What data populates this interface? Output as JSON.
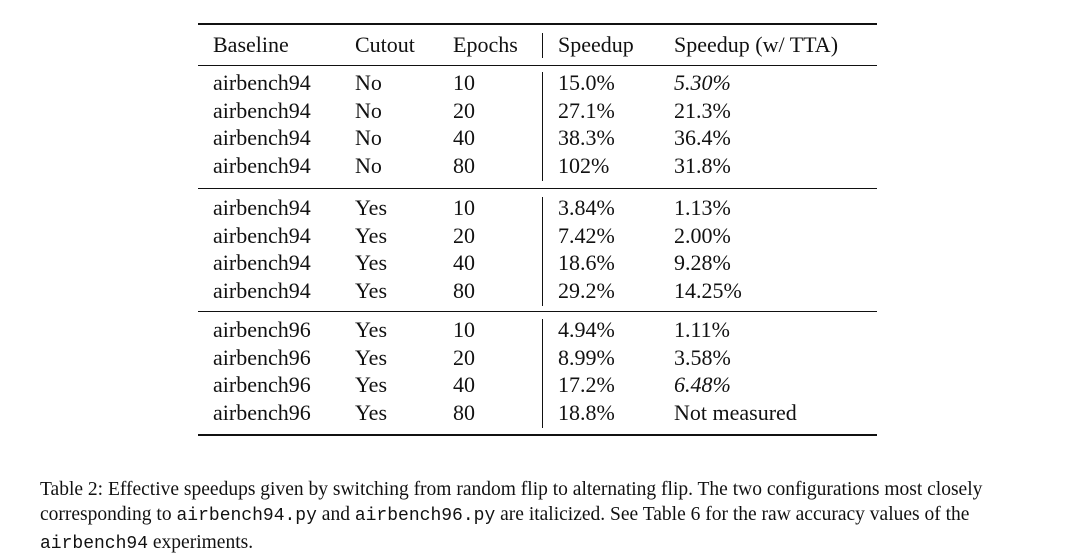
{
  "table": {
    "header": [
      "Baseline",
      "Cutout",
      "Epochs",
      "Speedup",
      "Speedup (w/ TTA)"
    ],
    "groups": [
      [
        [
          "airbench94",
          "No",
          "10",
          "15.0%",
          "5.30%"
        ],
        [
          "airbench94",
          "No",
          "20",
          "27.1%",
          "21.3%"
        ],
        [
          "airbench94",
          "No",
          "40",
          "38.3%",
          "36.4%"
        ],
        [
          "airbench94",
          "No",
          "80",
          "102%",
          "31.8%"
        ]
      ],
      [
        [
          "airbench94",
          "Yes",
          "10",
          "3.84%",
          "1.13%"
        ],
        [
          "airbench94",
          "Yes",
          "20",
          "7.42%",
          "2.00%"
        ],
        [
          "airbench94",
          "Yes",
          "40",
          "18.6%",
          "9.28%"
        ],
        [
          "airbench94",
          "Yes",
          "80",
          "29.2%",
          "14.25%"
        ]
      ],
      [
        [
          "airbench96",
          "Yes",
          "10",
          "4.94%",
          "1.11%"
        ],
        [
          "airbench96",
          "Yes",
          "20",
          "8.99%",
          "3.58%"
        ],
        [
          "airbench96",
          "Yes",
          "40",
          "17.2%",
          "6.48%"
        ],
        [
          "airbench96",
          "Yes",
          "80",
          "18.8%",
          "Not measured"
        ]
      ]
    ]
  },
  "caption": {
    "label": "Table 2:",
    "parts": [
      "Effective speedups given by switching from random flip to alternating flip. The two configurations most closely corresponding to",
      "airbench94.py",
      "and",
      "airbench96.py",
      "are italicized. See Table 6 for the raw accuracy values of the",
      "airbench94",
      "experiments."
    ]
  }
}
